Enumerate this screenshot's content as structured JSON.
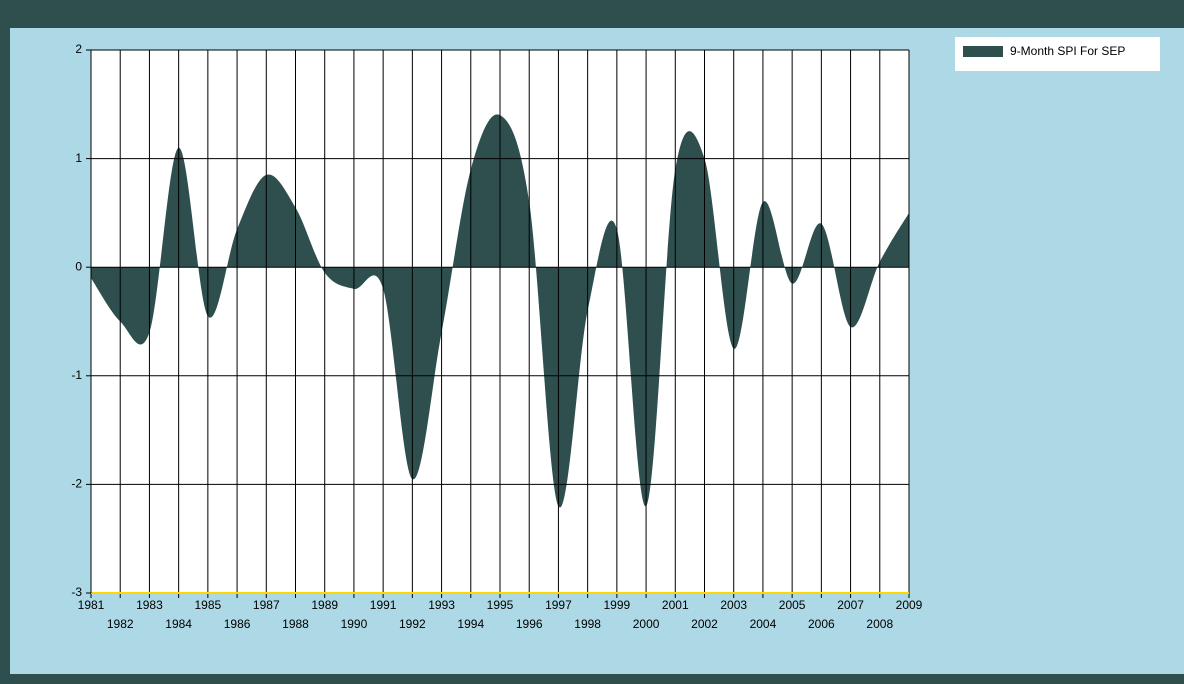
{
  "chart_data": {
    "type": "area",
    "x": [
      1981,
      1982,
      1983,
      1984,
      1985,
      1986,
      1987,
      1988,
      1989,
      1990,
      1991,
      1992,
      1993,
      1994,
      1995,
      1996,
      1997,
      1998,
      1999,
      2000,
      2001,
      2002,
      2003,
      2004,
      2005,
      2006,
      2007,
      2008,
      2009
    ],
    "series": [
      {
        "name": "9-Month SPI For SEP",
        "color": "#2f4f4f",
        "values": [
          -0.1,
          -0.5,
          -0.6,
          1.1,
          -0.45,
          0.35,
          0.85,
          0.55,
          -0.05,
          -0.2,
          -0.2,
          -1.95,
          -0.6,
          0.9,
          1.4,
          0.6,
          -2.2,
          -0.4,
          0.35,
          -2.2,
          0.9,
          1.0,
          -0.75,
          0.6,
          -0.15,
          0.4,
          -0.55,
          0.05,
          0.5
        ]
      }
    ],
    "xlim": [
      1981,
      2009
    ],
    "xticks": [
      1981,
      1982,
      1983,
      1984,
      1985,
      1986,
      1987,
      1988,
      1989,
      1990,
      1991,
      1992,
      1993,
      1994,
      1995,
      1996,
      1997,
      1998,
      1999,
      2000,
      2001,
      2002,
      2003,
      2004,
      2005,
      2006,
      2007,
      2008,
      2009
    ],
    "ylim": [
      -3,
      2
    ],
    "yticks": [
      -3,
      -2,
      -1,
      0,
      1,
      2
    ],
    "grid": true,
    "legend": "top-right"
  }
}
